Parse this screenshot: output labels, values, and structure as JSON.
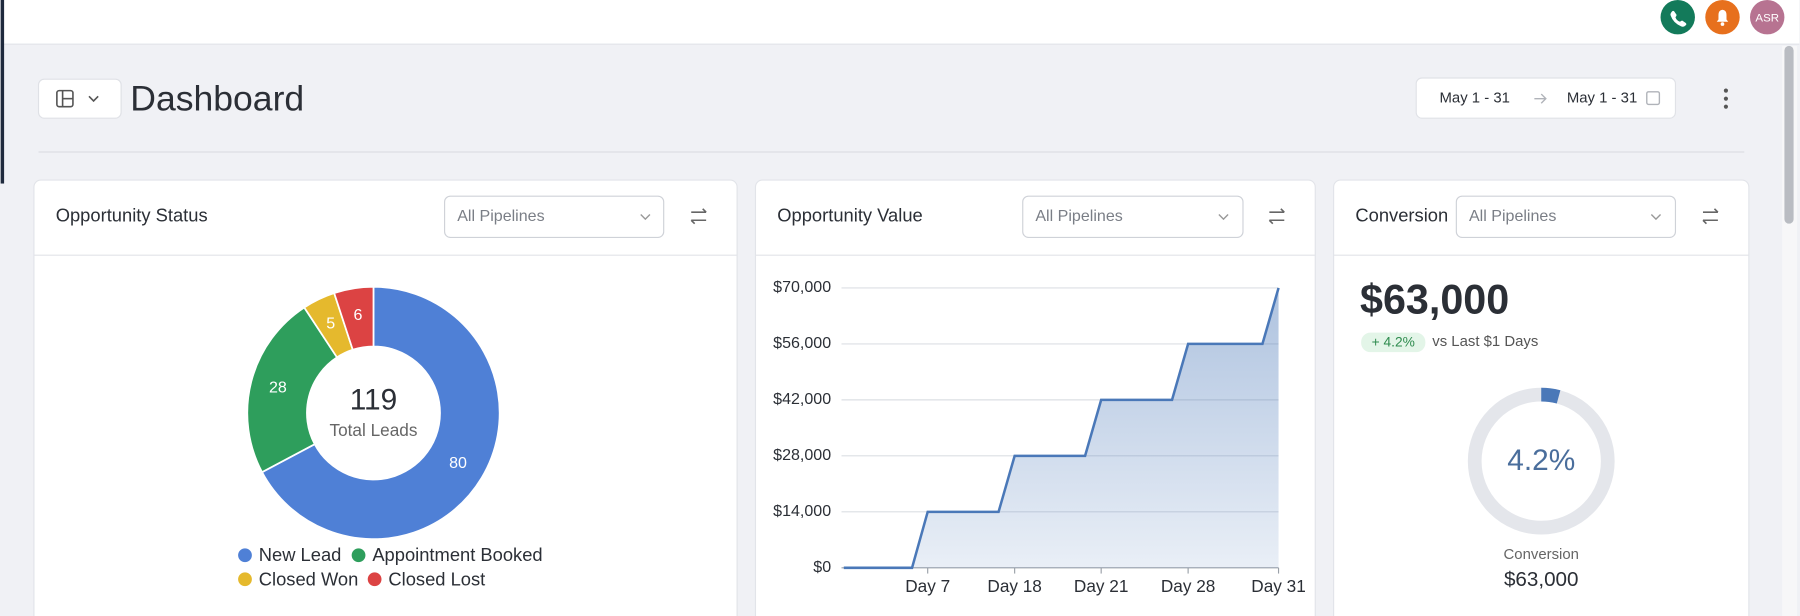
{
  "topbar": {
    "avatar": "ASR"
  },
  "toolbar": {
    "title": "Dashboard",
    "date_from": "May 1 - 31",
    "date_to": "May 1 - 31"
  },
  "opportunity_status": {
    "title": "Opportunity Status",
    "filter": "All Pipelines",
    "chart_data": {
      "type": "donut",
      "center_value": 119,
      "center_label": "Total Leads",
      "categories": [
        "New Lead",
        "Appointment Booked",
        "Closed Won",
        "Closed Lost"
      ],
      "values": [
        80,
        28,
        5,
        6
      ],
      "colors": [
        "#4f80d6",
        "#2e9e5c",
        "#e5b92d",
        "#dc4343"
      ]
    }
  },
  "opportunity_value": {
    "title": "Opportunity Value",
    "filter": "All Pipelines",
    "chart_data": {
      "type": "area",
      "categories": [
        null,
        null,
        "Day 7",
        null,
        "Day 18",
        null,
        "Day 21",
        null,
        "Day 28",
        null,
        "Day 31"
      ],
      "values": [
        0,
        0,
        14000,
        14000,
        28000,
        28000,
        42000,
        42000,
        56000,
        56000,
        70000
      ],
      "color": "#4a78b8",
      "ylim": [
        0,
        70000
      ],
      "yticks": [
        {
          "value": 0,
          "label": "$0"
        },
        {
          "value": 14000,
          "label": "$14,000"
        },
        {
          "value": 28000,
          "label": "$28,000"
        },
        {
          "value": 42000,
          "label": "$42,000"
        },
        {
          "value": 56000,
          "label": "$56,000"
        },
        {
          "value": 70000,
          "label": "$70,000"
        }
      ],
      "grid": true
    }
  },
  "conversion": {
    "title": "Conversion",
    "filter": "All Pipelines",
    "amount": "$63,000",
    "change": "+ 4.2%",
    "comparison": "vs Last $1 Days",
    "chart_data": {
      "type": "gauge",
      "value": 4.2,
      "value_label": "4.2%",
      "color": "#4a78b8",
      "label": "Conversion"
    },
    "footer_amount": "$63,000"
  }
}
